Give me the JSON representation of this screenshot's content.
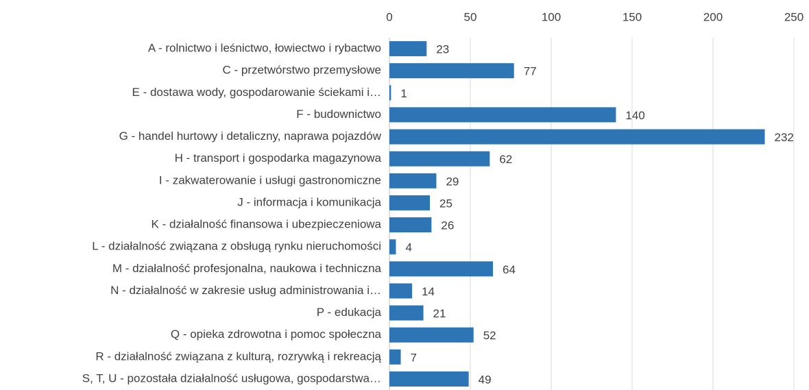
{
  "chart_data": {
    "type": "bar",
    "orientation": "horizontal",
    "categories": [
      "A - rolnictwo i leśnictwo, łowiectwo i rybactwo",
      "C - przetwórstwo przemysłowe",
      "E - dostawa wody, gospodarowanie ściekami i…",
      "F - budownictwo",
      "G - handel hurtowy i detaliczny, naprawa pojazdów",
      "H - transport i gospodarka magazynowa",
      "I - zakwaterowanie i usługi gastronomiczne",
      "J - informacja i komunikacja",
      "K - działalność finansowa i ubezpieczeniowa",
      "L - działalność związana z obsługą rynku nieruchomości",
      "M - działalność profesjonalna, naukowa i techniczna",
      "N - działalność w zakresie usług administrowania i…",
      "P - edukacja",
      "Q - opieka zdrowotna i pomoc społeczna",
      "R - działalność związana z kulturą, rozrywką i rekreacją",
      "S, T, U - pozostała działalność usługowa, gospodarstwa…"
    ],
    "values": [
      23,
      77,
      1,
      140,
      232,
      62,
      29,
      25,
      26,
      4,
      64,
      14,
      21,
      52,
      7,
      49
    ],
    "color": "#2e75b6",
    "xlim": [
      0,
      250
    ],
    "xticks": [
      0,
      50,
      100,
      150,
      200,
      250
    ],
    "grid": true
  }
}
